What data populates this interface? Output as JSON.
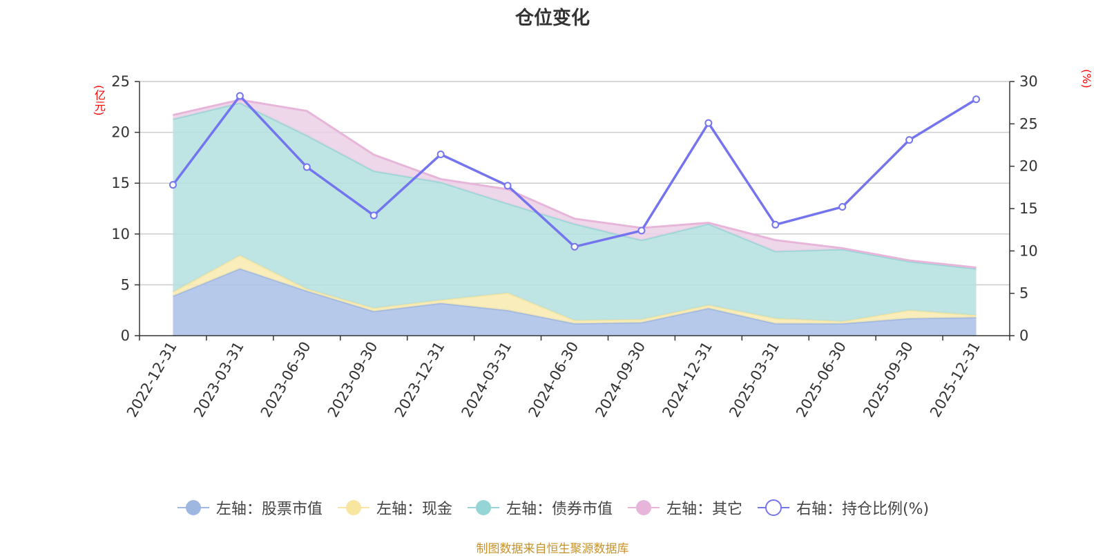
{
  "title": "仓位变化",
  "source": "制图数据来自恒生聚源数据库",
  "left_unit": "(亿元)",
  "right_unit": "(%)",
  "legend": [
    {
      "label": "左轴：股票市值",
      "color": "#9db7e0",
      "marker": "filled"
    },
    {
      "label": "左轴：现金",
      "color": "#f7e5a0",
      "marker": "filled"
    },
    {
      "label": "左轴：债券市值",
      "color": "#95d5d6",
      "marker": "filled"
    },
    {
      "label": "左轴：其它",
      "color": "#e8b5da",
      "marker": "filled"
    },
    {
      "label": "右轴：持仓比例(%)",
      "color": "#7474ee",
      "marker": "hollow"
    }
  ],
  "chart_data": {
    "type": "area",
    "categories": [
      "2022-12-31",
      "2023-03-31",
      "2023-06-30",
      "2023-09-30",
      "2023-12-31",
      "2024-03-31",
      "2024-06-30",
      "2024-09-30",
      "2024-12-31",
      "2025-03-31",
      "2025-06-30",
      "2025-09-30",
      "2025-12-31"
    ],
    "stacked": true,
    "left_axis": {
      "min": 0,
      "max": 25,
      "ticks": [
        0,
        5,
        10,
        15,
        20,
        25
      ]
    },
    "right_axis": {
      "min": 0,
      "max": 30,
      "ticks": [
        0,
        5,
        10,
        15,
        20,
        25,
        30
      ]
    },
    "series": [
      {
        "name": "左轴：股票市值",
        "axis": "left",
        "color": "#a9bfe6",
        "line": "#9db7e0",
        "values": [
          3.9,
          6.6,
          4.4,
          2.4,
          3.2,
          2.5,
          1.2,
          1.3,
          2.7,
          1.2,
          1.2,
          1.7,
          1.8
        ]
      },
      {
        "name": "左轴：现金",
        "axis": "left",
        "color": "#f8eab0",
        "line": "#f7e5a0",
        "values": [
          0.4,
          1.3,
          0.2,
          0.3,
          0.3,
          1.7,
          0.3,
          0.3,
          0.3,
          0.5,
          0.2,
          0.8,
          0.2
        ]
      },
      {
        "name": "左轴：债券市值",
        "axis": "left",
        "color": "#b3dfdf",
        "line": "#95d5d6",
        "values": [
          17.0,
          15.0,
          15.1,
          13.5,
          11.6,
          8.8,
          9.5,
          7.8,
          8.0,
          6.6,
          7.1,
          4.8,
          4.6
        ]
      },
      {
        "name": "左轴：其它",
        "axis": "left",
        "color": "#ecd0e6",
        "line": "#e8b5da",
        "values": [
          0.4,
          0.3,
          2.4,
          1.6,
          0.3,
          1.4,
          0.5,
          1.2,
          0.1,
          1.1,
          0.1,
          0.1,
          0.1
        ]
      },
      {
        "name": "右轴：持仓比例(%)",
        "axis": "right",
        "type": "line",
        "color": "#7474ee",
        "values": [
          17.8,
          28.3,
          19.9,
          14.2,
          21.4,
          17.7,
          10.5,
          12.4,
          25.1,
          13.1,
          15.2,
          23.1,
          27.9
        ]
      }
    ]
  }
}
